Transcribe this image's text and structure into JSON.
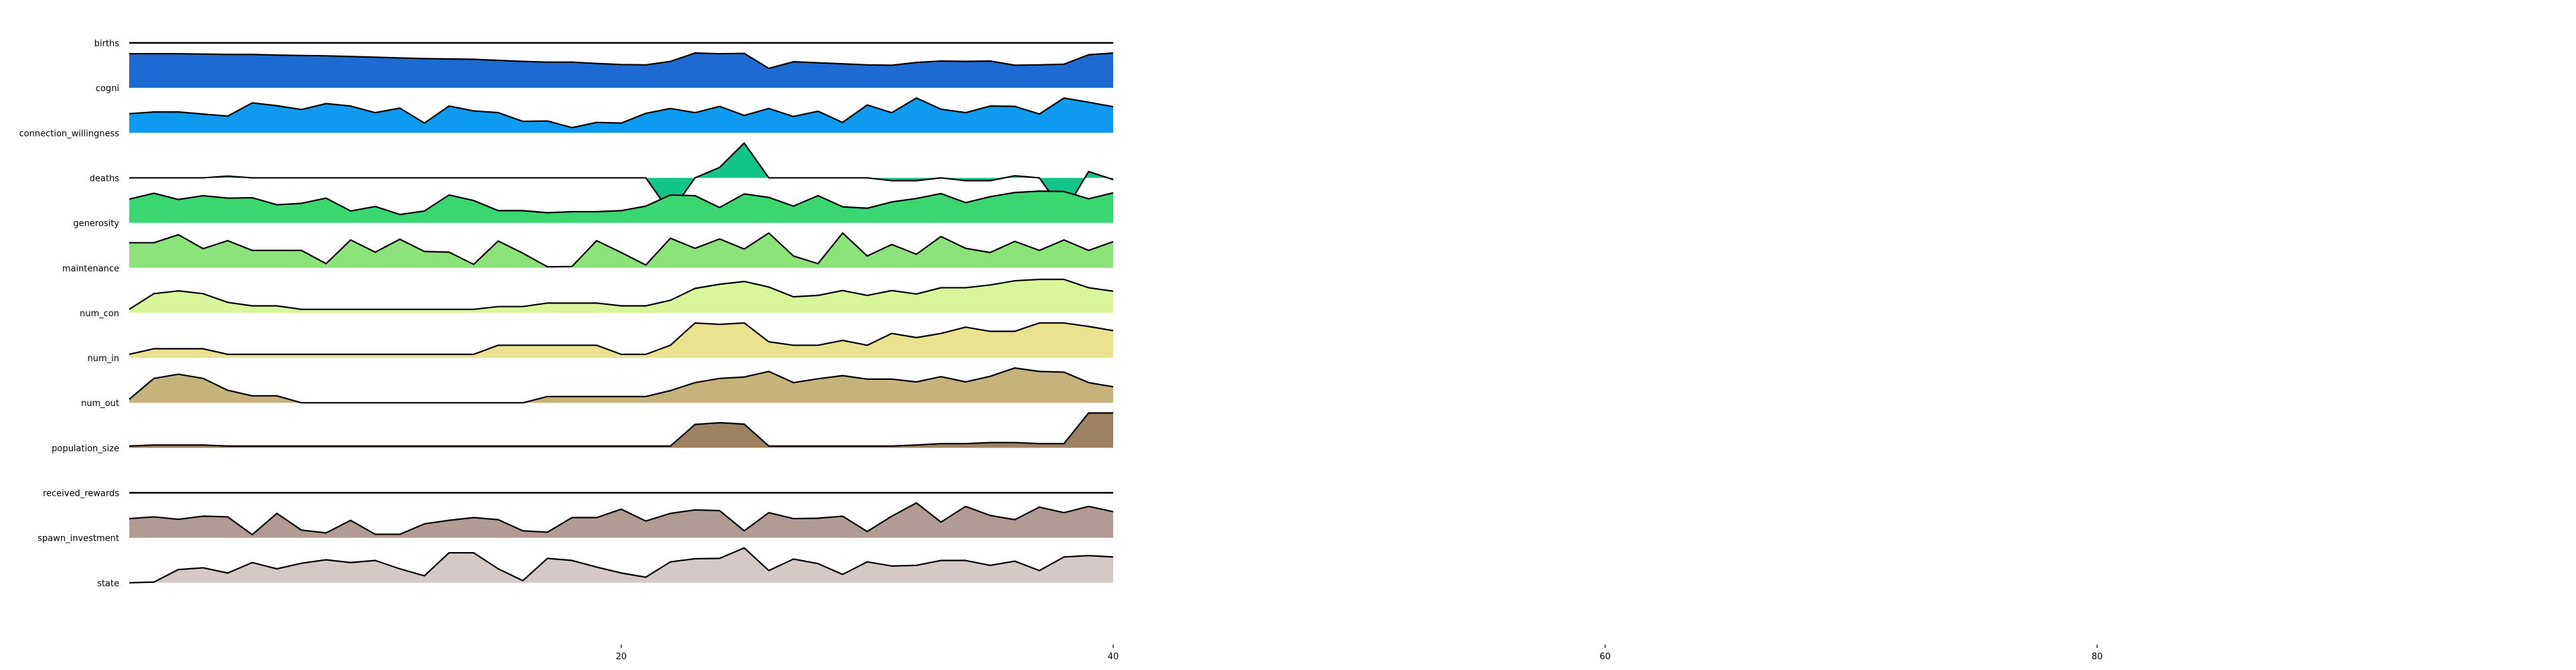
{
  "chart_data": {
    "type": "area",
    "title": "",
    "xlabel": "",
    "ylabel": "",
    "xlim": [
      0,
      100
    ],
    "x_ticks": [
      20,
      40,
      60,
      80
    ],
    "x_tick_labels": [
      "20",
      "40",
      "60",
      "80"
    ],
    "x": [
      0,
      1,
      2,
      3,
      4,
      5,
      6,
      7,
      8,
      9,
      10,
      11,
      12,
      13,
      14,
      15,
      16,
      17,
      18,
      19,
      20,
      21,
      22,
      23,
      24,
      25,
      26,
      27,
      28,
      29,
      30,
      31,
      32,
      33,
      34,
      35,
      36,
      37,
      38,
      39,
      40
    ],
    "series": [
      {
        "name": "births",
        "color": "#2a2a2a",
        "values": [
          0,
          0,
          0,
          0,
          0,
          0,
          0,
          0,
          0,
          0,
          0,
          0,
          0,
          0,
          0,
          0,
          0,
          0,
          0,
          0,
          0,
          0,
          0,
          0,
          0,
          0,
          0,
          0,
          0,
          0,
          0,
          0,
          0,
          0,
          0,
          0,
          0,
          0,
          0,
          0,
          0
        ]
      },
      {
        "name": "cogni",
        "color": "#1d6ad3",
        "values": [
          0.98,
          0.98,
          0.98,
          0.97,
          0.96,
          0.96,
          0.94,
          0.93,
          0.92,
          0.9,
          0.88,
          0.86,
          0.84,
          0.83,
          0.82,
          0.79,
          0.76,
          0.74,
          0.74,
          0.7,
          0.67,
          0.66,
          0.76,
          1.0,
          0.98,
          0.99,
          0.56,
          0.75,
          0.72,
          0.69,
          0.66,
          0.65,
          0.73,
          0.77,
          0.76,
          0.77,
          0.65,
          0.66,
          0.68,
          0.95,
          1.0
        ]
      },
      {
        "name": "connection_willingness",
        "color": "#0d9af0",
        "values": [
          0.55,
          0.6,
          0.6,
          0.54,
          0.48,
          0.86,
          0.78,
          0.67,
          0.84,
          0.77,
          0.58,
          0.71,
          0.28,
          0.77,
          0.63,
          0.58,
          0.33,
          0.34,
          0.15,
          0.3,
          0.28,
          0.56,
          0.7,
          0.58,
          0.76,
          0.5,
          0.7,
          0.47,
          0.62,
          0.3,
          0.8,
          0.58,
          1.0,
          0.68,
          0.58,
          0.77,
          0.76,
          0.54,
          1.0,
          0.88,
          0.75
        ]
      },
      {
        "name": "deaths",
        "color": "#12c48a",
        "values": [
          0,
          0,
          0,
          0,
          0.05,
          0,
          0,
          0,
          0,
          0,
          0,
          0,
          0,
          0,
          0,
          0,
          0,
          0,
          0,
          0,
          0,
          0,
          -1,
          0,
          0.3,
          1.0,
          0,
          0,
          0,
          0,
          0,
          -0.08,
          -0.08,
          0,
          -0.08,
          -0.08,
          0.06,
          0,
          -1,
          0.18,
          -0.05
        ]
      },
      {
        "name": "generosity",
        "color": "#3ad670",
        "values": [
          0.68,
          0.85,
          0.67,
          0.78,
          0.71,
          0.72,
          0.52,
          0.56,
          0.71,
          0.34,
          0.47,
          0.24,
          0.34,
          0.8,
          0.64,
          0.35,
          0.35,
          0.29,
          0.32,
          0.32,
          0.35,
          0.48,
          0.8,
          0.78,
          0.44,
          0.83,
          0.73,
          0.48,
          0.78,
          0.46,
          0.42,
          0.6,
          0.7,
          0.84,
          0.58,
          0.75,
          0.87,
          0.91,
          0.9,
          0.69,
          0.86
        ]
      },
      {
        "name": "maintenance",
        "color": "#8ce37a",
        "values": [
          0.72,
          0.72,
          0.95,
          0.55,
          0.78,
          0.5,
          0.5,
          0.5,
          0.12,
          0.8,
          0.45,
          0.82,
          0.47,
          0.45,
          0.1,
          0.77,
          0.42,
          0.03,
          0.04,
          0.78,
          0.44,
          0.08,
          0.85,
          0.56,
          0.83,
          0.54,
          1.0,
          0.34,
          0.12,
          1.0,
          0.34,
          0.67,
          0.39,
          0.9,
          0.56,
          0.44,
          0.76,
          0.5,
          0.8,
          0.5,
          0.75
        ]
      },
      {
        "name": "num_con",
        "color": "#d9f79a",
        "values": [
          0.1,
          0.55,
          0.63,
          0.55,
          0.3,
          0.2,
          0.2,
          0.1,
          0.1,
          0.1,
          0.1,
          0.1,
          0.1,
          0.1,
          0.1,
          0.18,
          0.18,
          0.28,
          0.28,
          0.28,
          0.2,
          0.2,
          0.36,
          0.7,
          0.82,
          0.9,
          0.74,
          0.46,
          0.5,
          0.64,
          0.5,
          0.64,
          0.54,
          0.72,
          0.72,
          0.8,
          0.92,
          0.96,
          0.96,
          0.72,
          0.62
        ]
      },
      {
        "name": "num_in",
        "color": "#ebe28f",
        "values": [
          0.1,
          0.26,
          0.26,
          0.26,
          0.1,
          0.1,
          0.1,
          0.1,
          0.1,
          0.1,
          0.1,
          0.1,
          0.1,
          0.1,
          0.1,
          0.36,
          0.36,
          0.36,
          0.36,
          0.36,
          0.1,
          0.1,
          0.36,
          1.0,
          0.96,
          1.0,
          0.46,
          0.36,
          0.36,
          0.5,
          0.36,
          0.7,
          0.58,
          0.7,
          0.88,
          0.76,
          0.76,
          1.0,
          1.0,
          0.9,
          0.78
        ]
      },
      {
        "name": "num_out",
        "color": "#c5b37b",
        "values": [
          0.1,
          0.7,
          0.82,
          0.7,
          0.36,
          0.2,
          0.2,
          0,
          0,
          0,
          0,
          0,
          0,
          0,
          0,
          0,
          0,
          0.18,
          0.18,
          0.18,
          0.18,
          0.18,
          0.35,
          0.58,
          0.7,
          0.74,
          0.9,
          0.58,
          0.69,
          0.78,
          0.68,
          0.68,
          0.6,
          0.75,
          0.6,
          0.76,
          1.0,
          0.9,
          0.88,
          0.58,
          0.46
        ]
      },
      {
        "name": "population_size",
        "color": "#9d8163",
        "values": [
          0.05,
          0.08,
          0.08,
          0.08,
          0.05,
          0.05,
          0.05,
          0.05,
          0.05,
          0.05,
          0.05,
          0.05,
          0.05,
          0.05,
          0.05,
          0.05,
          0.05,
          0.05,
          0.05,
          0.05,
          0.05,
          0.05,
          0.05,
          0.67,
          0.72,
          0.68,
          0.05,
          0.05,
          0.05,
          0.05,
          0.05,
          0.05,
          0.08,
          0.12,
          0.12,
          0.15,
          0.15,
          0.12,
          0.12,
          1.0,
          1.0
        ]
      },
      {
        "name": "received_rewards",
        "color": "#2a2a2a",
        "values": [
          0,
          0,
          0,
          0,
          0,
          0,
          0,
          0,
          0,
          0,
          0,
          0,
          0,
          0,
          0,
          0,
          0,
          0,
          0,
          0,
          0,
          0,
          0,
          0,
          0,
          0,
          0,
          0,
          0,
          0,
          0,
          0,
          0,
          0,
          0,
          0,
          0,
          0,
          0,
          0,
          0
        ]
      },
      {
        "name": "spawn_investment",
        "color": "#b19b94",
        "values": [
          0.55,
          0.6,
          0.53,
          0.62,
          0.6,
          0.09,
          0.7,
          0.22,
          0.14,
          0.5,
          0.1,
          0.1,
          0.4,
          0.5,
          0.58,
          0.52,
          0.2,
          0.16,
          0.58,
          0.58,
          0.82,
          0.48,
          0.7,
          0.8,
          0.78,
          0.2,
          0.72,
          0.55,
          0.56,
          0.62,
          0.18,
          0.62,
          1.0,
          0.45,
          0.9,
          0.64,
          0.52,
          0.88,
          0.72,
          0.9,
          0.75
        ]
      },
      {
        "name": "state",
        "color": "#d5c9c7",
        "values": [
          0,
          0.02,
          0.38,
          0.43,
          0.28,
          0.58,
          0.4,
          0.56,
          0.66,
          0.58,
          0.64,
          0.4,
          0.2,
          0.86,
          0.86,
          0.4,
          0.06,
          0.7,
          0.64,
          0.45,
          0.28,
          0.16,
          0.6,
          0.69,
          0.7,
          1.0,
          0.35,
          0.68,
          0.55,
          0.24,
          0.6,
          0.48,
          0.5,
          0.64,
          0.64,
          0.5,
          0.62,
          0.35,
          0.74,
          0.78,
          0.74
        ]
      }
    ],
    "grid": false,
    "legend": "none"
  }
}
